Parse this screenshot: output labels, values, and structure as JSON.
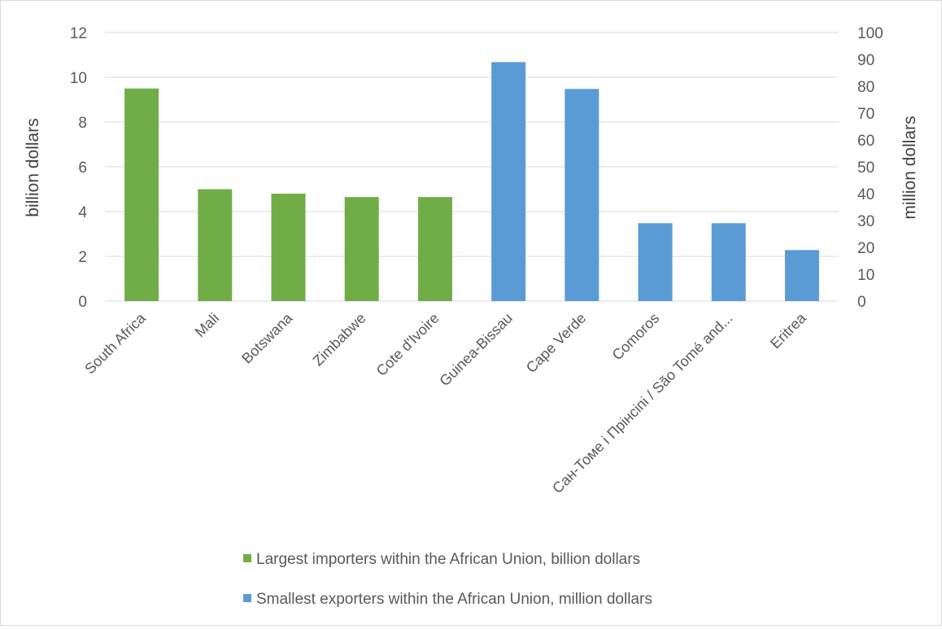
{
  "chart_data": {
    "type": "bar",
    "categories": [
      "South Africa",
      "Mali",
      "Botswana",
      "Zimbabwe",
      "Cote d'Ivoire",
      "Guinea-Bissau",
      "Cape Verde",
      "Comoros",
      "Сан-Томе і Прінсіпі / São Tomé and...",
      "Eritrea"
    ],
    "series": [
      {
        "name": "Largest importers within the African Union, billion dollars",
        "axis": "left",
        "color": "#70ad47",
        "values": [
          9.5,
          5.0,
          4.8,
          4.65,
          4.65,
          null,
          null,
          null,
          null,
          null
        ]
      },
      {
        "name": "Smallest exporters within the African Union, million dollars",
        "axis": "right",
        "color": "#5b9bd5",
        "values": [
          null,
          null,
          null,
          null,
          null,
          89,
          79,
          29,
          29,
          19
        ]
      }
    ],
    "y_left": {
      "label": "billion dollars",
      "range": [
        0,
        12
      ],
      "ticks": [
        "0",
        "2",
        "4",
        "6",
        "8",
        "10",
        "12"
      ]
    },
    "y_right": {
      "label": "million dollars",
      "range": [
        0,
        100
      ],
      "ticks": [
        "0",
        "10",
        "20",
        "30",
        "40",
        "50",
        "60",
        "70",
        "80",
        "90",
        "100"
      ]
    },
    "grid": true,
    "legend_position": "bottom"
  }
}
